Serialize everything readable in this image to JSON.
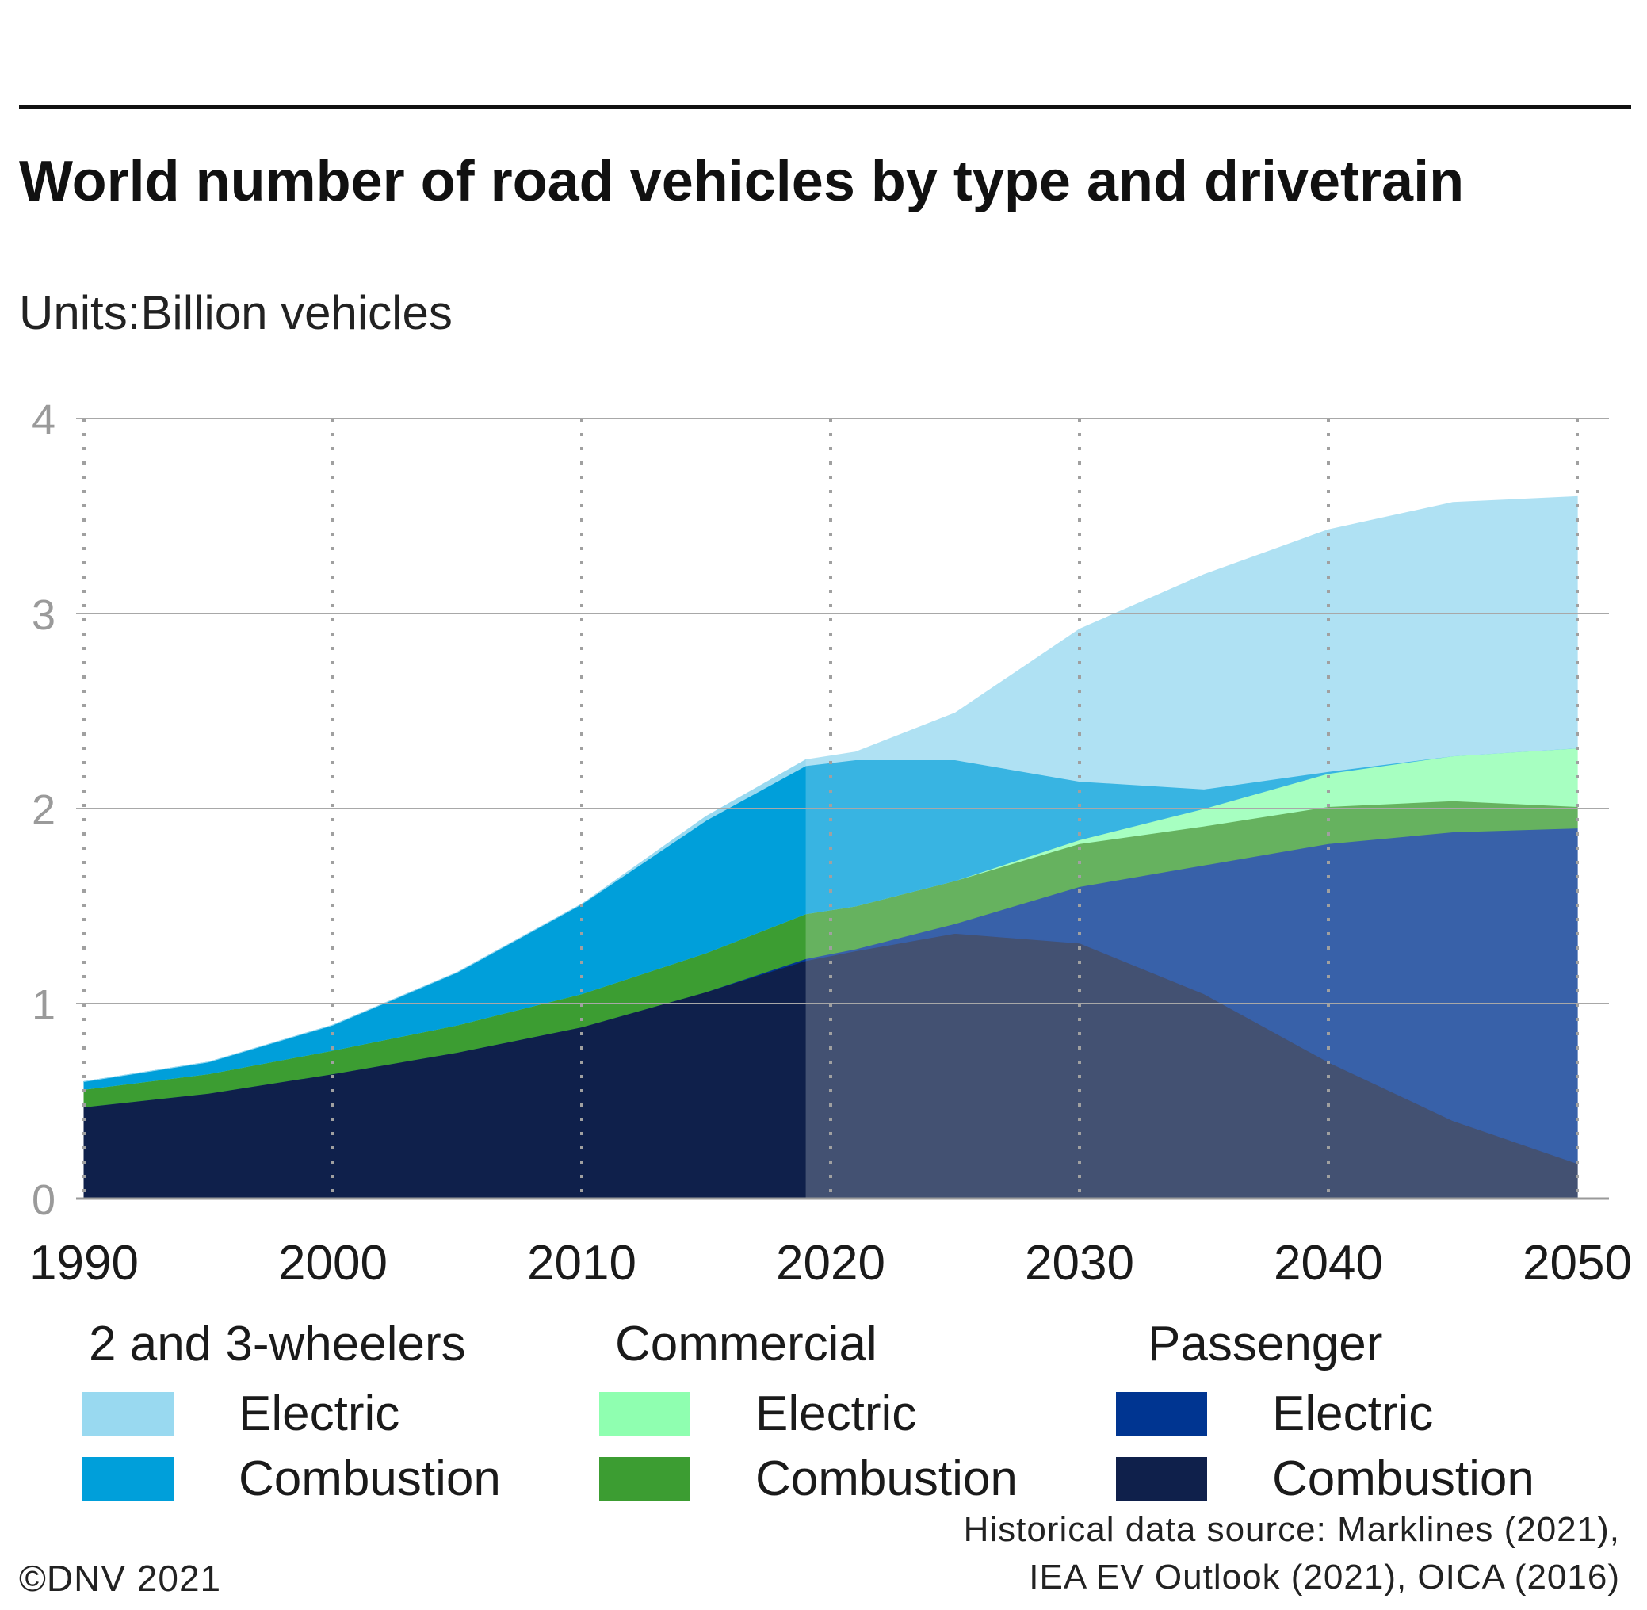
{
  "title": "World number of road vehicles by type and drivetrain",
  "units": "Units:Billion vehicles",
  "source_line1": "Historical data source: Marklines (2021),",
  "source_line2": "IEA EV Outlook (2021), OICA (2016)",
  "copyright": "©DNV 2021",
  "legend": {
    "groups": [
      {
        "title": "2 and 3-wheelers",
        "electric_label": "Electric",
        "combustion_label": "Combustion",
        "electric_color": "#99d9f0",
        "combustion_color": "#009fda"
      },
      {
        "title": "Commercial",
        "electric_label": "Electric",
        "combustion_label": "Combustion",
        "electric_color": "#8fffb0",
        "combustion_color": "#3c9d32"
      },
      {
        "title": "Passenger",
        "electric_label": "Electric",
        "combustion_label": "Combustion",
        "electric_color": "#003591",
        "combustion_color": "#0f204b"
      }
    ]
  },
  "chart_data": {
    "type": "area",
    "stacked": true,
    "title": "World number of road vehicles by type and drivetrain",
    "ylabel": "Billion vehicles",
    "xlim": [
      1990,
      2050
    ],
    "ylim": [
      0,
      4
    ],
    "x_ticks": [
      "1990",
      "2000",
      "2010",
      "2020",
      "2030",
      "2040",
      "2050"
    ],
    "y_ticks": [
      "0",
      "1",
      "2",
      "3",
      "4"
    ],
    "grid": "horizontal solid, vertical dotted",
    "historical_until": 2019,
    "x": [
      1990,
      1995,
      2000,
      2005,
      2010,
      2015,
      2019,
      2021,
      2025,
      2030,
      2035,
      2040,
      2045,
      2050
    ],
    "series": [
      {
        "name": "Passenger Combustion",
        "color": "#0f204b",
        "values": [
          0.47,
          0.54,
          0.64,
          0.75,
          0.88,
          1.06,
          1.22,
          1.27,
          1.36,
          1.31,
          1.05,
          0.7,
          0.4,
          0.18
        ]
      },
      {
        "name": "Passenger Electric",
        "color": "#003591",
        "values": [
          0.0,
          0.0,
          0.0,
          0.0,
          0.0,
          0.0,
          0.01,
          0.01,
          0.05,
          0.29,
          0.66,
          1.12,
          1.48,
          1.72
        ]
      },
      {
        "name": "Commercial Combustion",
        "color": "#3c9d32",
        "values": [
          0.09,
          0.1,
          0.12,
          0.14,
          0.17,
          0.2,
          0.23,
          0.22,
          0.22,
          0.22,
          0.2,
          0.19,
          0.16,
          0.11
        ]
      },
      {
        "name": "Commercial Electric",
        "color": "#8fffb0",
        "values": [
          0.0,
          0.0,
          0.0,
          0.0,
          0.0,
          0.0,
          0.0,
          0.0,
          0.0,
          0.02,
          0.09,
          0.17,
          0.23,
          0.3
        ]
      },
      {
        "name": "2 and 3-wheelers Combustion",
        "color": "#009fda",
        "values": [
          0.04,
          0.06,
          0.13,
          0.27,
          0.46,
          0.68,
          0.76,
          0.75,
          0.62,
          0.3,
          0.1,
          0.01,
          0.0,
          0.0
        ]
      },
      {
        "name": "2 and 3-wheelers Electric",
        "color": "#99d9f0",
        "values": [
          0.0,
          0.0,
          0.0,
          0.0,
          0.0,
          0.02,
          0.03,
          0.04,
          0.24,
          0.78,
          1.1,
          1.24,
          1.3,
          1.29
        ]
      }
    ]
  }
}
